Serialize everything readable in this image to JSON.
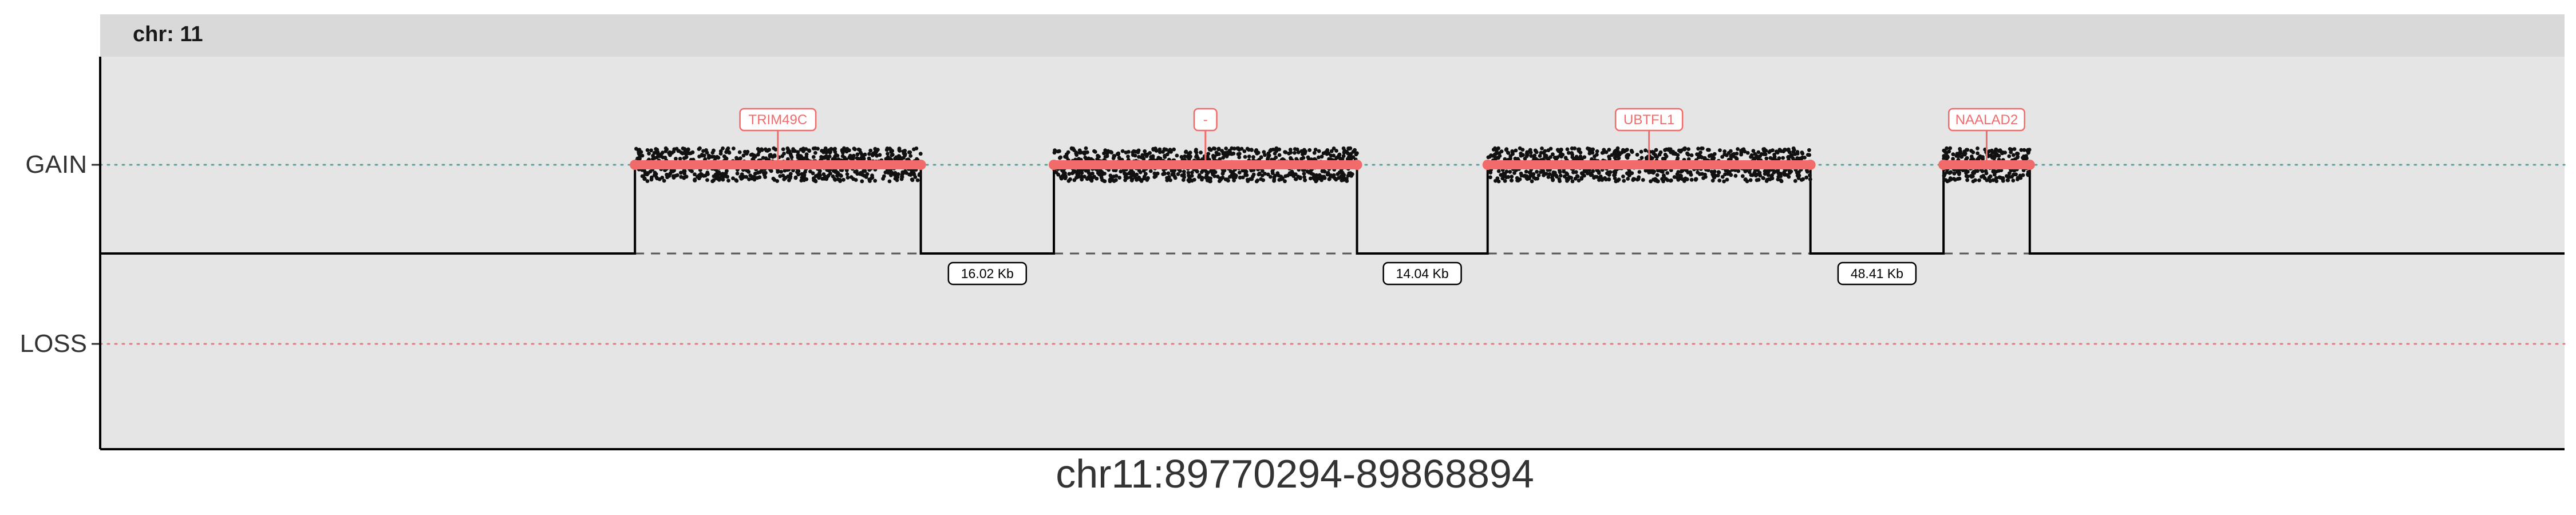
{
  "chart_data": {
    "type": "scatter",
    "title": "",
    "facet_label": "chr: 11",
    "xlabel": "chr11:89770294-89868894",
    "ylabel": "",
    "y_categories": [
      "LOSS",
      "GAIN"
    ],
    "baseline_color": "#000000",
    "gain_reference_color": "#5f9e9a",
    "loss_reference_color": "#e07a80",
    "segment_color": "#f26b6b",
    "point_color": "#111111",
    "panel_background": "#e5e5e5",
    "strip_background": "#d9d9d9",
    "grid": false,
    "legend": "none",
    "segments": [
      {
        "label": "TRIM49C",
        "state": "GAIN",
        "start_frac": 0.217,
        "end_frac": 0.333
      },
      {
        "label": "-",
        "state": "GAIN",
        "start_frac": 0.387,
        "end_frac": 0.51
      },
      {
        "label": "UBTFL1",
        "state": "GAIN",
        "start_frac": 0.563,
        "end_frac": 0.694
      },
      {
        "label": "NAALAD2",
        "state": "GAIN",
        "start_frac": 0.748,
        "end_frac": 0.783
      }
    ],
    "gaps": [
      {
        "label": "16.02 Kb",
        "between": [
          0,
          1
        ]
      },
      {
        "label": "14.04 Kb",
        "between": [
          1,
          2
        ]
      },
      {
        "label": "48.41 Kb",
        "between": [
          2,
          3
        ]
      }
    ]
  }
}
